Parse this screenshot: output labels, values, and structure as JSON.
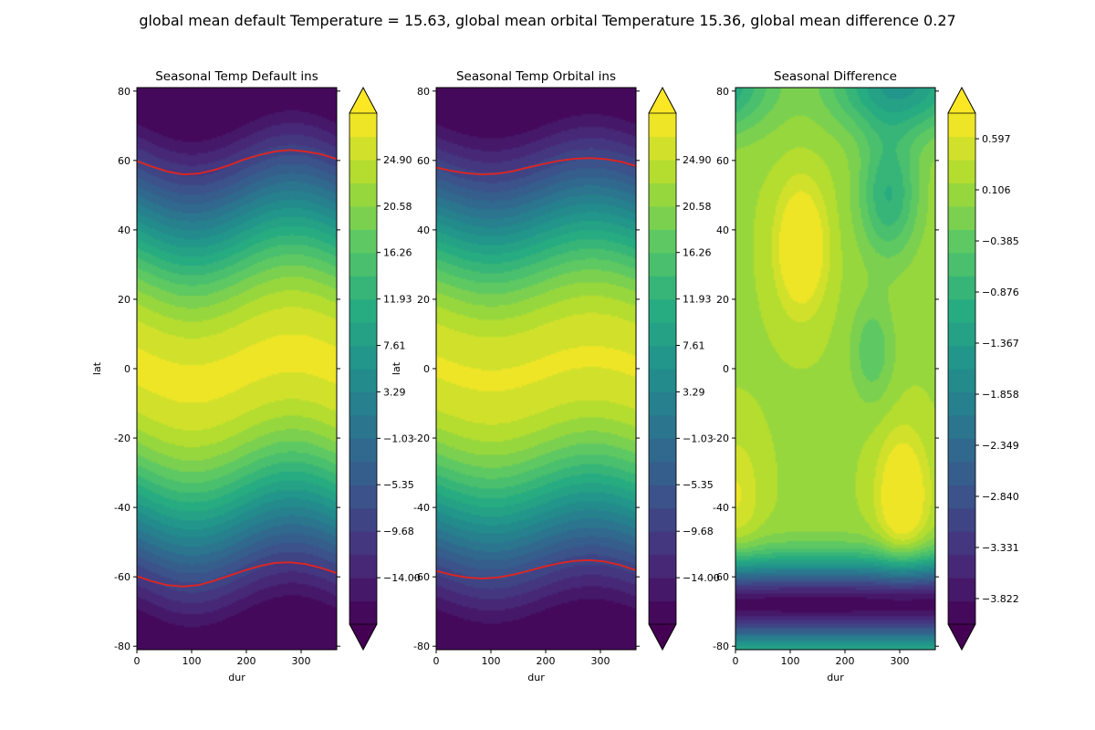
{
  "figure": {
    "suptitle": "global mean default Temperature = 15.63, global mean orbital Temperature 15.36, global mean difference 0.27"
  },
  "chart_data": [
    {
      "type": "heatmap",
      "title": "Seasonal Temp Default ins",
      "xlabel": "dur",
      "ylabel": "lat",
      "xlim": [
        0,
        365
      ],
      "ylim": [
        -81,
        81
      ],
      "xticks": [
        0,
        100,
        200,
        300
      ],
      "yticks": [
        -80,
        -60,
        -40,
        -20,
        0,
        20,
        40,
        60,
        80
      ],
      "colormap": "viridis",
      "color_range": [
        -18.32,
        29.22
      ],
      "colorbar_ticks": [
        "-14.00",
        "-9.68",
        "-5.35",
        "-1.03",
        "3.29",
        "7.61",
        "11.93",
        "16.26",
        "20.58",
        "24.90"
      ],
      "field": {
        "equator_temp": 27.5,
        "pole_temp": -22,
        "seasonal_shift_deg": 4.5
      },
      "contour_line": {
        "color": "#d62728",
        "north_lat": [
          59.8,
          58.2,
          56.8,
          56.0,
          56.2,
          57.2,
          58.6,
          60.3,
          61.6,
          62.6,
          63.0,
          62.6,
          61.8,
          60.4
        ],
        "south_lat": [
          -59.8,
          -61.3,
          -62.4,
          -62.8,
          -62.4,
          -61.2,
          -59.7,
          -58.2,
          -56.9,
          -56.0,
          -55.8,
          -56.3,
          -57.4,
          -58.9
        ],
        "dur": [
          0,
          28,
          56,
          84,
          112,
          140,
          168,
          196,
          224,
          252,
          280,
          308,
          336,
          365
        ]
      }
    },
    {
      "type": "heatmap",
      "title": "Seasonal Temp Orbital ins",
      "xlabel": "dur",
      "ylabel": "lat",
      "xlim": [
        0,
        365
      ],
      "ylim": [
        -81,
        81
      ],
      "xticks": [
        0,
        100,
        200,
        300
      ],
      "yticks": [
        -80,
        -60,
        -40,
        -20,
        0,
        20,
        40,
        60,
        80
      ],
      "colormap": "viridis",
      "color_range": [
        -18.32,
        29.22
      ],
      "colorbar_ticks": [
        "-14.00",
        "-9.68",
        "-5.35",
        "-1.03",
        "3.29",
        "7.61",
        "11.93",
        "16.26",
        "20.58",
        "24.90"
      ],
      "field": {
        "equator_temp": 27.2,
        "pole_temp": -22,
        "seasonal_shift_deg": 3.5
      },
      "contour_line": {
        "color": "#d62728",
        "north_lat": [
          58.0,
          57.0,
          56.3,
          56.0,
          56.2,
          56.9,
          58.0,
          59.0,
          59.9,
          60.5,
          60.7,
          60.4,
          59.7,
          58.4
        ],
        "south_lat": [
          -58.3,
          -59.4,
          -60.2,
          -60.5,
          -60.2,
          -59.4,
          -58.3,
          -57.1,
          -56.1,
          -55.4,
          -55.2,
          -55.6,
          -56.6,
          -58.1
        ],
        "dur": [
          0,
          28,
          56,
          84,
          112,
          140,
          168,
          196,
          224,
          252,
          280,
          308,
          336,
          365
        ]
      }
    },
    {
      "type": "heatmap",
      "title": "Seasonal Difference",
      "xlabel": "dur",
      "ylabel": "",
      "xlim": [
        0,
        365
      ],
      "ylim": [
        -81,
        81
      ],
      "xticks": [
        0,
        100,
        200,
        300
      ],
      "yticks": [
        -80,
        -60,
        -40,
        -20,
        0,
        20,
        40,
        60,
        80
      ],
      "colormap": "viridis",
      "color_range": [
        -4.068,
        0.843
      ],
      "colorbar_ticks": [
        "-3.822",
        "-3.331",
        "-2.840",
        "-2.349",
        "-1.858",
        "-1.367",
        "-0.876",
        "-0.385",
        "0.106",
        "0.597"
      ],
      "field": {
        "baseline": 0.15,
        "hotspots": [
          [
            120,
            35,
            1.05
          ],
          [
            305,
            -37,
            1.0
          ],
          [
            0,
            -37,
            0.5
          ]
        ],
        "trough_lat": -68,
        "trough_depth": -4.1
      }
    }
  ]
}
